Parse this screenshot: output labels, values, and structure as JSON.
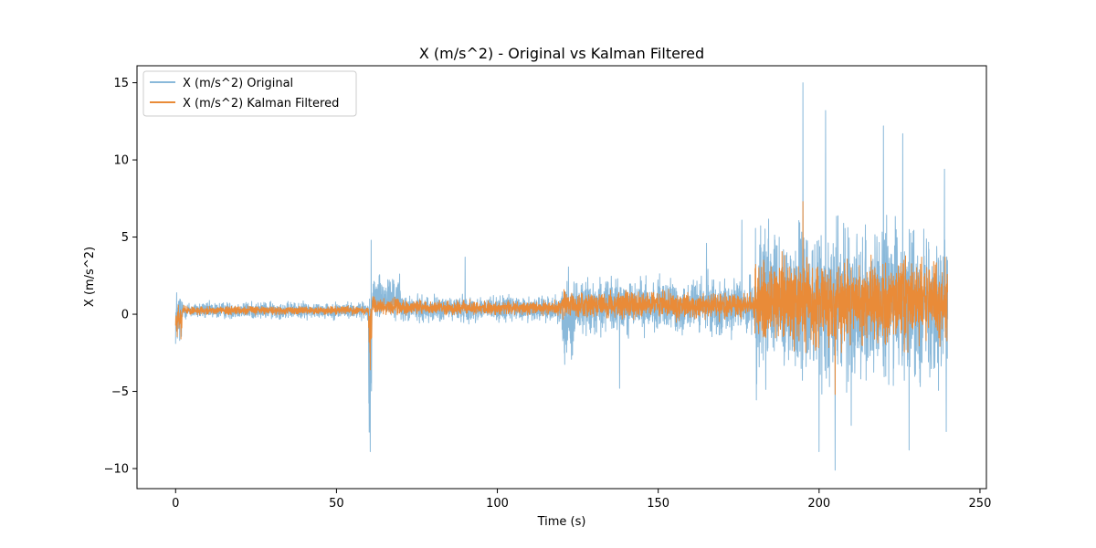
{
  "chart_data": {
    "type": "line",
    "title": "X (m/s^2) - Original vs Kalman Filtered",
    "xlabel": "Time (s)",
    "ylabel": "X (m/s^2)",
    "xlim": [
      -12,
      252
    ],
    "ylim": [
      -11.3,
      16.1
    ],
    "xticks": [
      0,
      50,
      100,
      150,
      200,
      250
    ],
    "yticks": [
      -10,
      -5,
      0,
      5,
      10,
      15
    ],
    "xtick_labels": [
      "0",
      "50",
      "100",
      "150",
      "200",
      "250"
    ],
    "ytick_labels": [
      "−10",
      "−5",
      "0",
      "5",
      "10",
      "15"
    ],
    "grid": false,
    "legend": {
      "placement": "top-left"
    },
    "series": [
      {
        "name": "X (m/s^2) Original",
        "color": "#8ab9da",
        "segments": [
          {
            "t": [
              0,
              2
            ],
            "low": -3.0,
            "high": 2.6
          },
          {
            "t": [
              2,
              60
            ],
            "low": -0.5,
            "high": 1.0
          },
          {
            "t": [
              60,
              61
            ],
            "low": -8.9,
            "high": 4.8
          },
          {
            "t": [
              61,
              70
            ],
            "low": -1.0,
            "high": 3.0
          },
          {
            "t": [
              70,
              120
            ],
            "low": -0.8,
            "high": 1.5
          },
          {
            "t": [
              120,
              124
            ],
            "low": -4.2,
            "high": 4.0
          },
          {
            "t": [
              124,
              180
            ],
            "low": -2.0,
            "high": 3.0
          },
          {
            "t": [
              180,
              240
            ],
            "low": -6.0,
            "high": 7.5
          }
        ],
        "peaks": [
          {
            "t": 60.5,
            "v": -8.9
          },
          {
            "t": 60.8,
            "v": 4.8
          },
          {
            "t": 90,
            "v": 3.7
          },
          {
            "t": 138,
            "v": -4.8
          },
          {
            "t": 165,
            "v": 4.6
          },
          {
            "t": 176,
            "v": 6.1
          },
          {
            "t": 195,
            "v": 15.0
          },
          {
            "t": 200,
            "v": -8.9
          },
          {
            "t": 202,
            "v": 13.2
          },
          {
            "t": 205,
            "v": -10.1
          },
          {
            "t": 210,
            "v": -7.2
          },
          {
            "t": 220,
            "v": 12.2
          },
          {
            "t": 226,
            "v": 11.7
          },
          {
            "t": 228,
            "v": -8.8
          },
          {
            "t": 239,
            "v": 9.4
          },
          {
            "t": 239.5,
            "v": -7.6
          }
        ]
      },
      {
        "name": "X (m/s^2) Kalman Filtered",
        "color": "#e98b38",
        "segments": [
          {
            "t": [
              0,
              2
            ],
            "low": -1.8,
            "high": 1.0
          },
          {
            "t": [
              2,
              60
            ],
            "low": -0.1,
            "high": 0.6
          },
          {
            "t": [
              60,
              61
            ],
            "low": -3.6,
            "high": 1.6
          },
          {
            "t": [
              61,
              70
            ],
            "low": -0.3,
            "high": 1.3
          },
          {
            "t": [
              70,
              120
            ],
            "low": -0.2,
            "high": 1.0
          },
          {
            "t": [
              120,
              180
            ],
            "low": -0.6,
            "high": 1.8
          },
          {
            "t": [
              180,
              240
            ],
            "low": -3.0,
            "high": 4.5
          }
        ],
        "peaks": [
          {
            "t": 60.5,
            "v": -3.6
          },
          {
            "t": 195,
            "v": 7.3
          },
          {
            "t": 205,
            "v": -5.2
          }
        ]
      }
    ]
  }
}
